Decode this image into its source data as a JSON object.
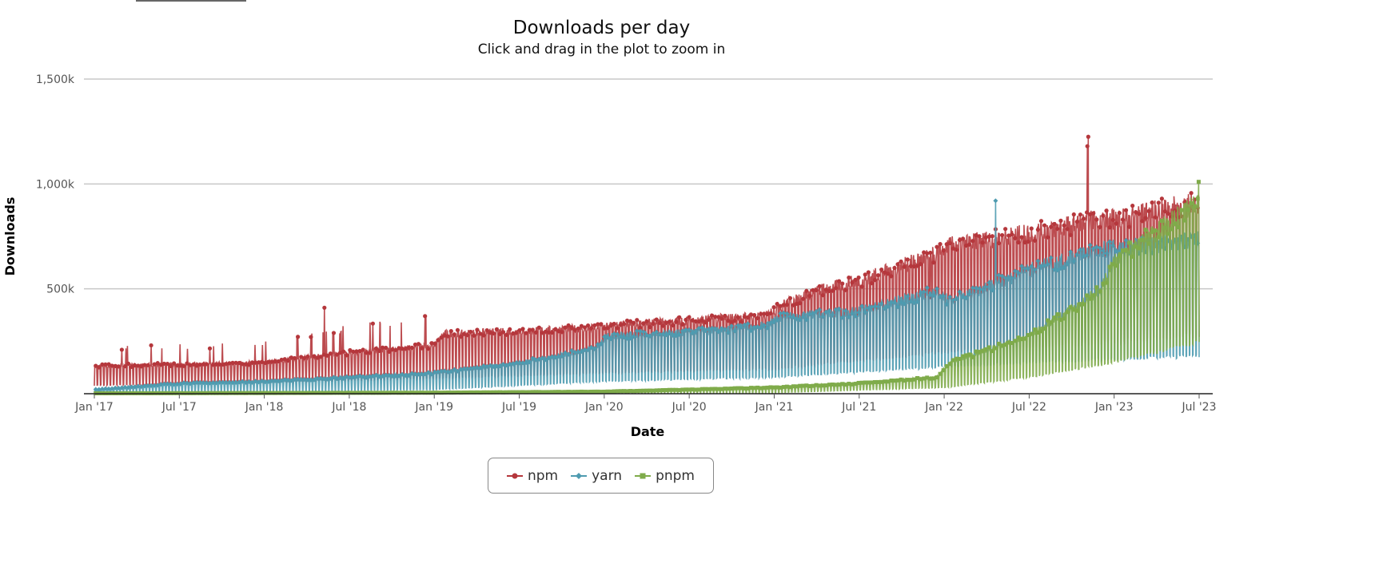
{
  "chart_data": {
    "type": "line",
    "title": "Downloads per day",
    "subtitle": "Click and drag in the plot to zoom in",
    "xlabel": "Date",
    "ylabel": "Downloads",
    "xlim": [
      "2017-01-01",
      "2023-07-01"
    ],
    "ylim": [
      0,
      1500000
    ],
    "y_ticks": [
      {
        "value": 500000,
        "label": "500k"
      },
      {
        "value": 1000000,
        "label": "1,000k"
      },
      {
        "value": 1500000,
        "label": "1,500k"
      }
    ],
    "x_ticks": [
      "Jan '17",
      "Jul '17",
      "Jan '18",
      "Jul '18",
      "Jan '19",
      "Jul '19",
      "Jan '20",
      "Jul '20",
      "Jan '21",
      "Jul '21",
      "Jan '22",
      "Jul '22",
      "Jan '23",
      "Jul '23"
    ],
    "grid": true,
    "legend_position": "bottom-center",
    "note": "Approximate daily values read from the plot: weekday peak and weekend trough by date",
    "series": [
      {
        "name": "npm",
        "color": "#b5373c",
        "marker": "circle",
        "weekday": [
          [
            "2017-01-01",
            135000
          ],
          [
            "2017-12-20",
            150000
          ],
          [
            "2018-07-01",
            200000
          ],
          [
            "2019-01-01",
            235000
          ],
          [
            "2019-01-20",
            290000
          ],
          [
            "2019-12-15",
            320000
          ],
          [
            "2020-01-05",
            330000
          ],
          [
            "2020-12-15",
            380000
          ],
          [
            "2021-01-05",
            420000
          ],
          [
            "2021-04-01",
            500000
          ],
          [
            "2021-07-01",
            550000
          ],
          [
            "2021-12-15",
            680000
          ],
          [
            "2022-01-10",
            720000
          ],
          [
            "2022-07-01",
            780000
          ],
          [
            "2022-12-01",
            850000
          ],
          [
            "2023-01-01",
            850000
          ],
          [
            "2023-07-01",
            930000
          ]
        ],
        "weekend": [
          [
            "2017-01-01",
            40000
          ],
          [
            "2018-01-01",
            55000
          ],
          [
            "2019-01-01",
            75000
          ],
          [
            "2020-01-01",
            100000
          ],
          [
            "2021-01-01",
            120000
          ],
          [
            "2022-01-01",
            200000
          ],
          [
            "2023-01-01",
            250000
          ],
          [
            "2023-07-01",
            280000
          ]
        ],
        "spikes": [
          [
            "2018-05-10",
            410000
          ],
          [
            "2021-11-30",
            460000
          ],
          [
            "2022-11-05",
            1225000
          ],
          [
            "2022-11-03",
            1180000
          ]
        ]
      },
      {
        "name": "yarn",
        "color": "#4e9bb0",
        "marker": "diamond",
        "weekday": [
          [
            "2017-01-01",
            20000
          ],
          [
            "2017-07-01",
            50000
          ],
          [
            "2018-01-01",
            60000
          ],
          [
            "2018-07-01",
            80000
          ],
          [
            "2019-01-01",
            100000
          ],
          [
            "2019-07-01",
            150000
          ],
          [
            "2019-12-15",
            220000
          ],
          [
            "2020-01-05",
            280000
          ],
          [
            "2020-07-01",
            300000
          ],
          [
            "2020-12-15",
            330000
          ],
          [
            "2021-01-05",
            370000
          ],
          [
            "2021-07-01",
            400000
          ],
          [
            "2021-12-15",
            500000
          ],
          [
            "2022-01-10",
            450000
          ],
          [
            "2022-07-01",
            600000
          ],
          [
            "2022-12-01",
            700000
          ],
          [
            "2023-07-01",
            750000
          ]
        ],
        "weekend": [
          [
            "2017-01-01",
            5000
          ],
          [
            "2019-01-01",
            20000
          ],
          [
            "2020-01-01",
            60000
          ],
          [
            "2021-01-01",
            80000
          ],
          [
            "2022-01-01",
            130000
          ],
          [
            "2022-07-01",
            150000
          ],
          [
            "2023-07-01",
            180000
          ]
        ],
        "spikes": [
          [
            "2022-04-20",
            920000
          ]
        ]
      },
      {
        "name": "pnpm",
        "color": "#7fab4a",
        "marker": "square",
        "weekday": [
          [
            "2017-01-01",
            2000
          ],
          [
            "2019-01-01",
            5000
          ],
          [
            "2020-01-01",
            10000
          ],
          [
            "2021-01-01",
            30000
          ],
          [
            "2021-07-01",
            50000
          ],
          [
            "2021-12-15",
            80000
          ],
          [
            "2022-01-10",
            150000
          ],
          [
            "2022-07-01",
            280000
          ],
          [
            "2022-12-01",
            500000
          ],
          [
            "2023-01-01",
            650000
          ],
          [
            "2023-07-01",
            930000
          ]
        ],
        "weekend": [
          [
            "2017-01-01",
            0
          ],
          [
            "2021-01-01",
            5000
          ],
          [
            "2022-01-01",
            30000
          ],
          [
            "2022-07-01",
            80000
          ],
          [
            "2023-01-01",
            150000
          ],
          [
            "2023-07-01",
            250000
          ]
        ],
        "spikes": [
          [
            "2023-06-30",
            1010000
          ]
        ]
      }
    ]
  }
}
